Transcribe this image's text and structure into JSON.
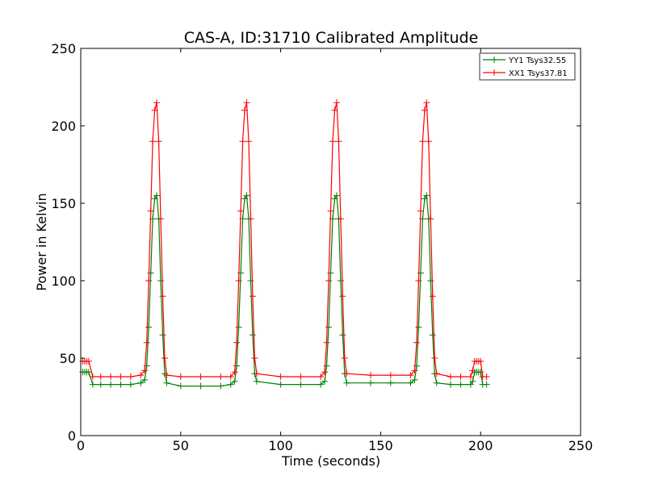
{
  "chart_data": {
    "type": "line",
    "title": "CAS-A, ID:31710 Calibrated Amplitude",
    "xlabel": "Time (seconds)",
    "ylabel": "Power in Kelvin",
    "xlim": [
      0,
      250
    ],
    "ylim": [
      0,
      250
    ],
    "xticks": [
      "0",
      "50",
      "100",
      "150",
      "200",
      "250"
    ],
    "yticks": [
      "0",
      "50",
      "100",
      "150",
      "200",
      "250"
    ],
    "grid": false,
    "legend_position": "top-right",
    "series": [
      {
        "name": "YY1 Tsys32.55",
        "color": "#008000",
        "marker": "+",
        "points": [
          [
            1,
            41
          ],
          [
            2,
            41
          ],
          [
            3,
            41
          ],
          [
            4,
            41
          ],
          [
            6,
            33
          ],
          [
            10,
            33
          ],
          [
            15,
            33
          ],
          [
            20,
            33
          ],
          [
            25,
            33
          ],
          [
            30,
            34
          ],
          [
            32,
            36
          ],
          [
            33,
            45
          ],
          [
            34,
            70
          ],
          [
            35,
            105
          ],
          [
            36,
            140
          ],
          [
            37,
            153
          ],
          [
            38,
            155
          ],
          [
            39,
            140
          ],
          [
            40,
            100
          ],
          [
            41,
            65
          ],
          [
            42,
            40
          ],
          [
            43,
            34
          ],
          [
            50,
            32
          ],
          [
            60,
            32
          ],
          [
            70,
            32
          ],
          [
            75,
            33
          ],
          [
            77,
            35
          ],
          [
            78,
            45
          ],
          [
            79,
            70
          ],
          [
            80,
            105
          ],
          [
            81,
            140
          ],
          [
            82,
            153
          ],
          [
            83,
            155
          ],
          [
            84,
            140
          ],
          [
            85,
            100
          ],
          [
            86,
            65
          ],
          [
            87,
            40
          ],
          [
            88,
            35
          ],
          [
            100,
            33
          ],
          [
            110,
            33
          ],
          [
            120,
            33
          ],
          [
            122,
            35
          ],
          [
            123,
            45
          ],
          [
            124,
            70
          ],
          [
            125,
            105
          ],
          [
            126,
            140
          ],
          [
            127,
            153
          ],
          [
            128,
            155
          ],
          [
            129,
            140
          ],
          [
            130,
            100
          ],
          [
            131,
            65
          ],
          [
            132,
            40
          ],
          [
            133,
            34
          ],
          [
            145,
            34
          ],
          [
            155,
            34
          ],
          [
            165,
            34
          ],
          [
            167,
            36
          ],
          [
            168,
            45
          ],
          [
            169,
            70
          ],
          [
            170,
            105
          ],
          [
            171,
            140
          ],
          [
            172,
            153
          ],
          [
            173,
            155
          ],
          [
            174,
            140
          ],
          [
            175,
            100
          ],
          [
            176,
            65
          ],
          [
            177,
            40
          ],
          [
            178,
            34
          ],
          [
            185,
            33
          ],
          [
            190,
            33
          ],
          [
            195,
            33
          ],
          [
            196,
            35
          ],
          [
            197,
            41
          ],
          [
            198,
            41
          ],
          [
            199,
            41
          ],
          [
            200,
            41
          ],
          [
            201,
            33
          ],
          [
            203,
            33
          ]
        ]
      },
      {
        "name": "XX1 Tsys37.81",
        "color": "#ff0000",
        "marker": "+",
        "points": [
          [
            1,
            48
          ],
          [
            2,
            48
          ],
          [
            3,
            48
          ],
          [
            4,
            48
          ],
          [
            6,
            38
          ],
          [
            10,
            38
          ],
          [
            15,
            38
          ],
          [
            20,
            38
          ],
          [
            25,
            38
          ],
          [
            30,
            39
          ],
          [
            32,
            42
          ],
          [
            33,
            60
          ],
          [
            34,
            100
          ],
          [
            35,
            145
          ],
          [
            36,
            190
          ],
          [
            37,
            210
          ],
          [
            38,
            215
          ],
          [
            39,
            190
          ],
          [
            40,
            140
          ],
          [
            41,
            90
          ],
          [
            42,
            50
          ],
          [
            43,
            39
          ],
          [
            50,
            38
          ],
          [
            60,
            38
          ],
          [
            70,
            38
          ],
          [
            75,
            38
          ],
          [
            77,
            41
          ],
          [
            78,
            60
          ],
          [
            79,
            100
          ],
          [
            80,
            145
          ],
          [
            81,
            190
          ],
          [
            82,
            210
          ],
          [
            83,
            215
          ],
          [
            84,
            190
          ],
          [
            85,
            140
          ],
          [
            86,
            90
          ],
          [
            87,
            50
          ],
          [
            88,
            40
          ],
          [
            100,
            38
          ],
          [
            110,
            38
          ],
          [
            120,
            38
          ],
          [
            122,
            41
          ],
          [
            123,
            60
          ],
          [
            124,
            100
          ],
          [
            125,
            145
          ],
          [
            126,
            190
          ],
          [
            127,
            210
          ],
          [
            128,
            215
          ],
          [
            129,
            190
          ],
          [
            130,
            140
          ],
          [
            131,
            90
          ],
          [
            132,
            50
          ],
          [
            133,
            40
          ],
          [
            145,
            39
          ],
          [
            155,
            39
          ],
          [
            165,
            39
          ],
          [
            167,
            42
          ],
          [
            168,
            60
          ],
          [
            169,
            100
          ],
          [
            170,
            145
          ],
          [
            171,
            190
          ],
          [
            172,
            210
          ],
          [
            173,
            215
          ],
          [
            174,
            190
          ],
          [
            175,
            140
          ],
          [
            176,
            90
          ],
          [
            177,
            50
          ],
          [
            178,
            40
          ],
          [
            185,
            38
          ],
          [
            190,
            38
          ],
          [
            195,
            38
          ],
          [
            196,
            42
          ],
          [
            197,
            48
          ],
          [
            198,
            48
          ],
          [
            199,
            48
          ],
          [
            200,
            48
          ],
          [
            201,
            38
          ],
          [
            203,
            38
          ]
        ]
      }
    ]
  }
}
